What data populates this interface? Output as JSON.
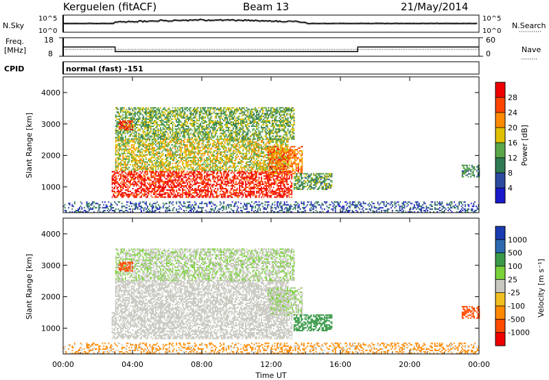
{
  "header": {
    "station": "Kerguelen (fitACF)",
    "beam": "Beam 13",
    "date": "21/May/2014"
  },
  "noise_panel": {
    "left_label": "N.Sky",
    "right_label": "N.Search",
    "left_ticks": [
      "10^5",
      "10^0"
    ],
    "right_ticks": [
      "10^5",
      "10^0"
    ]
  },
  "freq_panel": {
    "left_label_line1": "Freq.",
    "left_label_line2": "[MHz]",
    "right_label": "Nave",
    "left_ticks": [
      "18",
      "8"
    ],
    "right_ticks": [
      "60",
      "0"
    ],
    "freq_steps": [
      {
        "start_h": 0,
        "end_h": 3,
        "mhz": 13.0
      },
      {
        "start_h": 3,
        "end_h": 17,
        "mhz": 10.5
      },
      {
        "start_h": 17,
        "end_h": 24,
        "mhz": 13.0
      }
    ],
    "nave_level": 22
  },
  "cpid": {
    "label": "CPID",
    "value": "normal (fast) -151"
  },
  "power_panel": {
    "ylabel": "Slant Range [km]",
    "yticks": [
      "1000",
      "2000",
      "3000",
      "4000"
    ],
    "colorbar_label": "Power [dB]",
    "colorbar_ticks": [
      "4",
      "8",
      "12",
      "16",
      "20",
      "24",
      "28"
    ]
  },
  "velocity_panel": {
    "ylabel": "Slant Range [km]",
    "yticks": [
      "1000",
      "2000",
      "3000",
      "4000"
    ],
    "colorbar_label": "Velocity [m s⁻¹]",
    "colorbar_ticks": [
      "1000",
      "500",
      "100",
      "25",
      "-25",
      "-100",
      "-500",
      "-1000"
    ]
  },
  "x_axis": {
    "label": "Time UT",
    "ticks": [
      "00:00",
      "04:00",
      "08:00",
      "12:00",
      "16:00",
      "20:00",
      "00:00"
    ]
  },
  "colors": {
    "power_scale": [
      "#1a1acc",
      "#2c4aa0",
      "#2e7a52",
      "#5aa64a",
      "#e0c000",
      "#ff8a00",
      "#ff4400",
      "#ee0000"
    ],
    "velocity_scale": [
      "#1a3ab0",
      "#2c6ab0",
      "#3a9a4a",
      "#7ad23a",
      "#c8c8c0",
      "#f0c020",
      "#ff8a00",
      "#ff4a00",
      "#ee0000"
    ]
  },
  "chart_data": {
    "type": "heatmap",
    "x_range_hours": [
      0,
      24
    ],
    "y_range_km": [
      180,
      4500
    ],
    "power_range_db": [
      0,
      30
    ],
    "velocity_range_ms": [
      -1000,
      1000
    ],
    "scatter_regions": [
      {
        "start_h": 2.8,
        "end_h": 13.2,
        "range_min_km": 650,
        "range_max_km": 1500,
        "power_db": 27,
        "velocity_ms": 0
      },
      {
        "start_h": 3.0,
        "end_h": 13.0,
        "range_min_km": 1500,
        "range_max_km": 2500,
        "power_db": 16,
        "velocity_ms": 0
      },
      {
        "start_h": 3.0,
        "end_h": 13.3,
        "range_min_km": 2500,
        "range_max_km": 3500,
        "power_db": 13,
        "velocity_ms": 20
      },
      {
        "start_h": 3.2,
        "end_h": 4.0,
        "range_min_km": 2800,
        "range_max_km": 3100,
        "power_db": 26,
        "velocity_ms": -150
      },
      {
        "start_h": 11.8,
        "end_h": 13.8,
        "range_min_km": 1400,
        "range_max_km": 2300,
        "power_db": 22,
        "velocity_ms": 20
      },
      {
        "start_h": 13.3,
        "end_h": 15.5,
        "range_min_km": 900,
        "range_max_km": 1400,
        "power_db": 12,
        "velocity_ms": 120
      },
      {
        "start_h": 23.0,
        "end_h": 24.0,
        "range_min_km": 1300,
        "range_max_km": 1700,
        "power_db": 10,
        "velocity_ms": -200
      },
      {
        "start_h": 0.0,
        "end_h": 24.0,
        "range_min_km": 180,
        "range_max_km": 500,
        "power_db": 6,
        "velocity_ms": -50
      }
    ]
  }
}
